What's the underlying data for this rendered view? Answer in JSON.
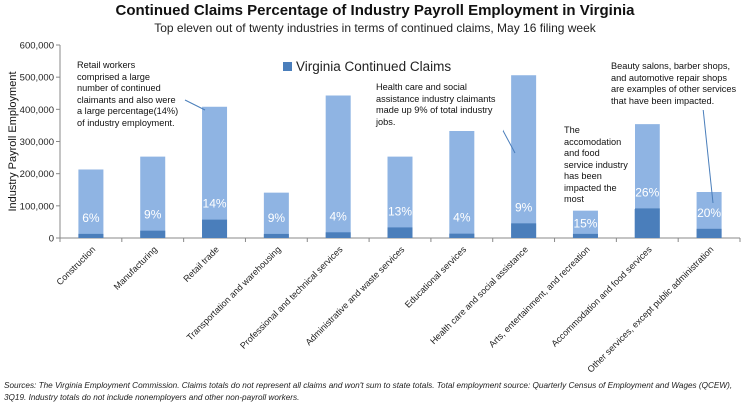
{
  "title": "Continued Claims Percentage of Industry Payroll Employment in Virginia",
  "subtitle": "Top eleven out of twenty industries in terms of continued claims, May 16 filing week",
  "source": "Sources: The Virginia Employment Commission. Claims totals do not represent all claims and won't sum to state totals. Total employment source: Quarterly Census of Employment and Wages (QCEW), 3Q19. Industry totals do not include nonemployers and other non-payroll workers.",
  "colors": {
    "employment": "#8fb4e3",
    "claims": "#4a7ebb",
    "pct_label": "#ffffff"
  },
  "chart_data": {
    "type": "bar",
    "stacked": true,
    "ylabel": "Industry Payroll Employment",
    "ylim": [
      0,
      600000
    ],
    "yticks": [
      0,
      100000,
      200000,
      300000,
      400000,
      500000,
      600000
    ],
    "ytick_labels": [
      "0",
      "100,000",
      "200,000",
      "300,000",
      "400,000",
      "500,000",
      "600,000"
    ],
    "legend": {
      "label": "Virginia Continued Claims",
      "position": "top-center"
    },
    "grid": false,
    "categories": [
      "Construction",
      "Manufacturing",
      "Retail trade",
      "Transportation and warehousing",
      "Professional and technical services",
      "Administrative and waste services",
      "Educational services",
      "Health care and social assistance",
      "Arts, entertainment, and recreation",
      "Accommodation and food services",
      "Other services, except public administration"
    ],
    "employment": [
      213000,
      253000,
      408000,
      141000,
      443000,
      253000,
      337000,
      506000,
      85000,
      354000,
      143000
    ],
    "claims": [
      12800,
      22800,
      57100,
      12700,
      17700,
      32900,
      13500,
      45500,
      12800,
      92000,
      28600
    ],
    "pct_labels": [
      "6%",
      "9%",
      "14%",
      "9%",
      "4%",
      "13%",
      "4%",
      "9%",
      "15%",
      "26%",
      "20%"
    ],
    "annotations": [
      {
        "text": "Retail workers comprised a large number of continued claimants and also were a large percentage(14%) of industry employment."
      },
      {
        "text": "Health care and social assistance industry claimants made up 9% of total industry jobs."
      },
      {
        "text": "The accomodation and food service industry has been impacted the most"
      },
      {
        "text": "Beauty salons, barber shops, and automotive repair shops are examples of other services that have been impacted."
      }
    ]
  }
}
